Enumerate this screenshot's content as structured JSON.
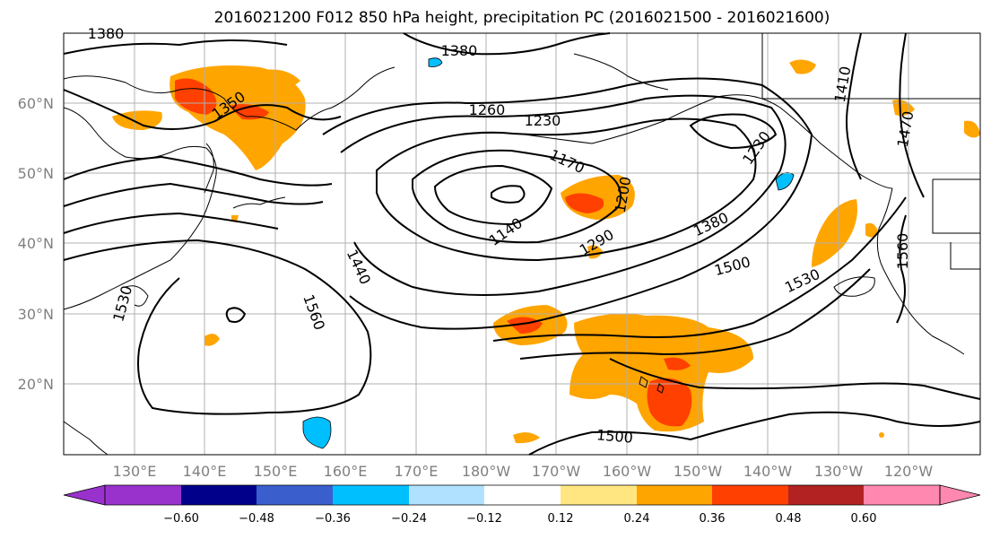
{
  "title": "2016021200 F012 850 hPa height, precipitation PC (2016021500 - 2016021600)",
  "map": {
    "lon_labels": [
      "130°E",
      "140°E",
      "150°E",
      "160°E",
      "170°E",
      "180°W",
      "170°W",
      "160°W",
      "150°W",
      "140°W",
      "130°W",
      "120°W"
    ],
    "lat_labels": [
      "60°N",
      "50°N",
      "40°N",
      "30°N",
      "20°N"
    ],
    "contour_labels": [
      "1380",
      "1380",
      "1350",
      "1260",
      "1230",
      "1170",
      "1140",
      "1200",
      "1290",
      "1380",
      "1500",
      "1530",
      "1230",
      "1410",
      "1470",
      "1560",
      "1440",
      "1560",
      "1530",
      "1500"
    ],
    "shading_colors": {
      "orange": "#ffa500",
      "red_orange": "#ff4000",
      "yellow": "#ffe680",
      "light_blue": "#00bfff",
      "cyan": "#00bfff"
    }
  },
  "colorbar": {
    "colors": [
      "#9932cc",
      "#00008b",
      "#3a5fcd",
      "#00bfff",
      "#b0e2ff",
      "#ffffff",
      "#ffffff",
      "#ffe680",
      "#ffa500",
      "#ff4000",
      "#b22222",
      "#ff88b0"
    ],
    "tick_labels": [
      "−0.60",
      "−0.48",
      "−0.36",
      "−0.24",
      "−0.12",
      "0.12",
      "0.24",
      "0.36",
      "0.48",
      "0.60"
    ]
  }
}
